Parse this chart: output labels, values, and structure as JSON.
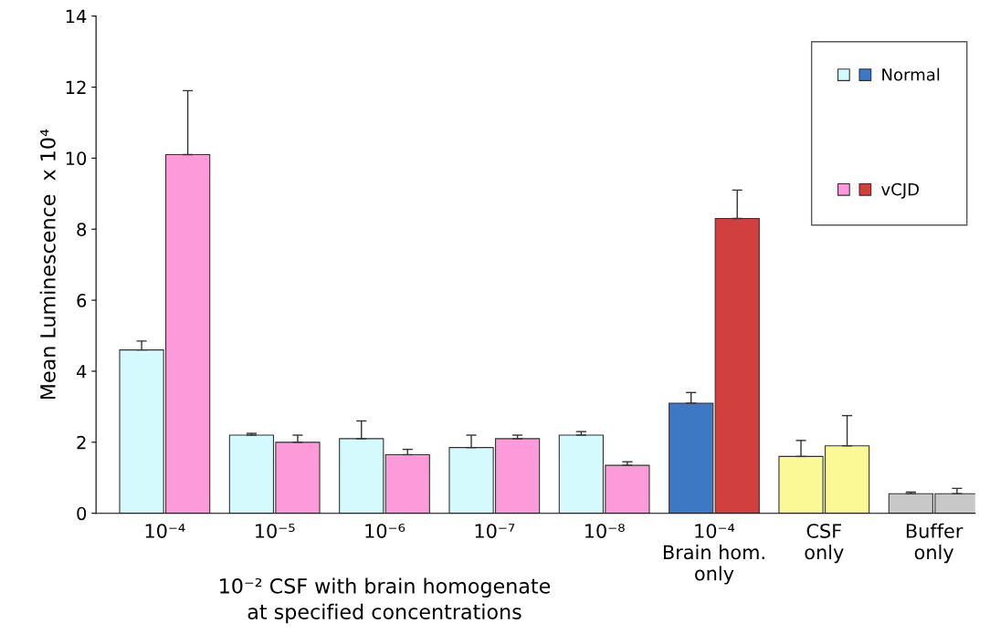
{
  "chart_data": {
    "type": "bar",
    "ylabel": "Mean Luminescence  x 10⁴",
    "categories": [
      "10⁻⁴",
      "10⁻⁵",
      "10⁻⁶",
      "10⁻⁷",
      "10⁻⁸",
      "10⁻⁴\nBrain hom.\nonly",
      "CSF\nonly",
      "Buffer\nonly"
    ],
    "series": [
      {
        "name": "Normal",
        "colors": [
          "#d4fafd",
          "#d4fafd",
          "#d4fafd",
          "#d4fafd",
          "#d4fafd",
          "#3d78c4",
          "#fbf996",
          "#c8c8c8"
        ],
        "values": [
          4.6,
          2.2,
          2.1,
          1.85,
          2.2,
          3.1,
          1.6,
          0.55
        ],
        "errors": [
          [
            4.6,
            4.85
          ],
          [
            2.2,
            2.25
          ],
          [
            2.1,
            2.6
          ],
          [
            1.85,
            2.2
          ],
          [
            2.2,
            2.3
          ],
          [
            3.1,
            3.4
          ],
          [
            1.6,
            2.05
          ],
          [
            0.55,
            0.6
          ]
        ]
      },
      {
        "name": "vCJD",
        "colors": [
          "#fd9ad9",
          "#fd9ad9",
          "#fd9ad9",
          "#fd9ad9",
          "#fd9ad9",
          "#d23f3f",
          "#fbf996",
          "#c8c8c8"
        ],
        "values": [
          10.1,
          2.0,
          1.65,
          2.1,
          1.35,
          8.3,
          1.9,
          0.55
        ],
        "errors": [
          [
            10.1,
            11.9
          ],
          [
            2.0,
            2.2
          ],
          [
            1.65,
            1.8
          ],
          [
            2.1,
            2.2
          ],
          [
            1.35,
            1.45
          ],
          [
            8.3,
            9.1
          ],
          [
            1.9,
            2.75
          ],
          [
            0.55,
            0.7
          ]
        ]
      }
    ],
    "ylim": [
      0,
      14
    ],
    "yticks": [
      0,
      2,
      4,
      6,
      8,
      10,
      12,
      14
    ],
    "grid": false,
    "legend": "top right",
    "annotations": [
      "10⁻² CSF with brain homogenate\nat specified concentrations"
    ]
  }
}
